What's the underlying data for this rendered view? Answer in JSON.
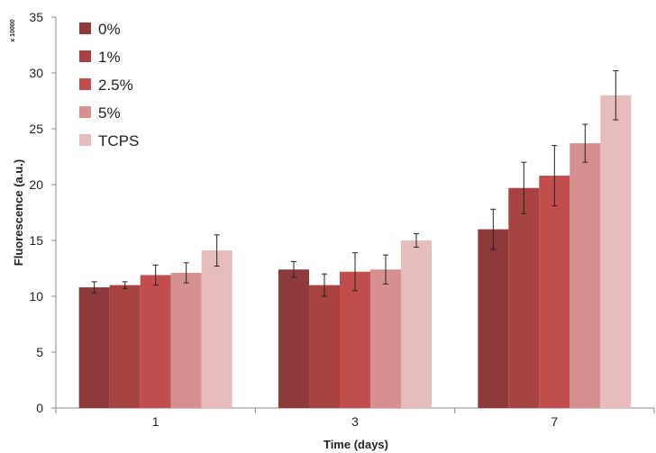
{
  "chart_data": {
    "type": "bar",
    "title": "",
    "xlabel": "Time (days)",
    "ylabel": "Fluorescence (a.u.)",
    "y_multiplier_label": "x 10000",
    "categories": [
      "1",
      "3",
      "7"
    ],
    "ylim": [
      0,
      35
    ],
    "yticks": [
      0,
      5,
      10,
      15,
      20,
      25,
      30,
      35
    ],
    "grid": false,
    "legend_position": "top-left",
    "series": [
      {
        "name": "0%",
        "color": "#8e3a3a",
        "values": [
          10.8,
          12.4,
          16.0
        ],
        "errors": [
          0.5,
          0.7,
          1.8
        ]
      },
      {
        "name": "1%",
        "color": "#a84343",
        "values": [
          11.0,
          11.0,
          19.7
        ],
        "errors": [
          0.3,
          1.0,
          2.3
        ]
      },
      {
        "name": "2.5%",
        "color": "#c24d4d",
        "values": [
          11.9,
          12.2,
          20.8
        ],
        "errors": [
          0.9,
          1.7,
          2.7
        ]
      },
      {
        "name": "5%",
        "color": "#d69090",
        "values": [
          12.1,
          12.4,
          23.7
        ],
        "errors": [
          0.9,
          1.3,
          1.7
        ]
      },
      {
        "name": "TCPS",
        "color": "#e6bcbc",
        "values": [
          14.1,
          15.0,
          28.0
        ],
        "errors": [
          1.4,
          0.6,
          2.2
        ]
      }
    ]
  }
}
